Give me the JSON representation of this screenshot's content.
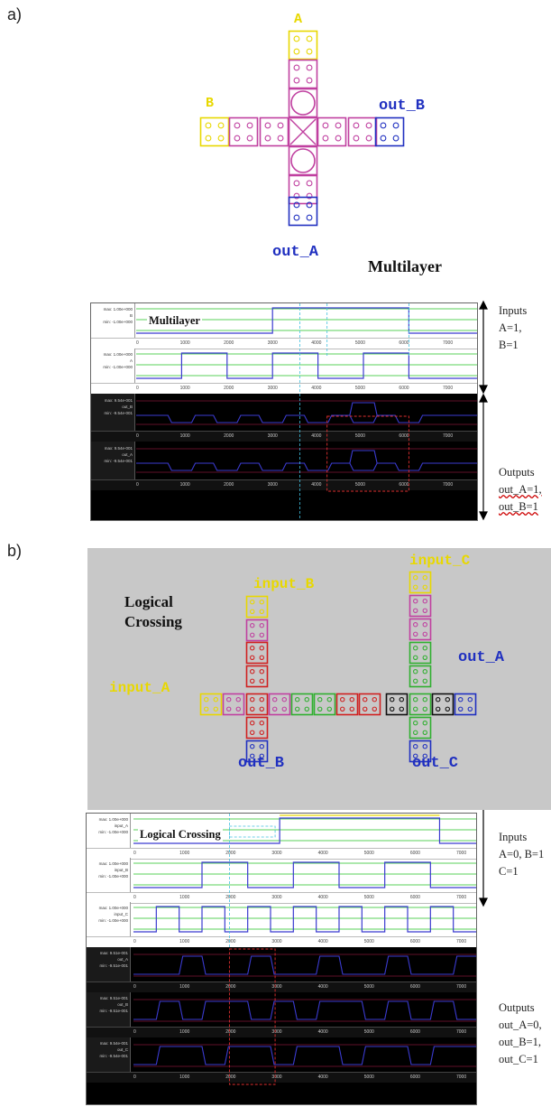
{
  "panel_a": {
    "label": "a)",
    "signals": {
      "A": "A",
      "B": "B",
      "out_A": "out_A",
      "out_B": "out_B"
    },
    "title": "Multilayer",
    "scope_title": "Multilayer",
    "tracks": [
      {
        "max": "max: 1.00e+000",
        "name": "B",
        "min": "min: -1.00e+000"
      },
      {
        "max": "max: 1.00e+000",
        "name": "A",
        "min": "min: -1.00e+000"
      },
      {
        "max": "max: 9.54e-001",
        "name": "out_B",
        "min": "min: -9.54e-001"
      },
      {
        "max": "max: 9.54e-001",
        "name": "out_A",
        "min": "min: -9.54e-001"
      }
    ],
    "inputs_note": [
      "Inputs",
      "A=1,",
      "B=1"
    ],
    "outputs_note": [
      "Outputs",
      "out_A=1,",
      "out_B=1"
    ]
  },
  "panel_b": {
    "label": "b)",
    "signals": {
      "input_A": "input_A",
      "input_B": "input_B",
      "input_C": "input_C",
      "out_A": "out_A",
      "out_B": "out_B",
      "out_C": "out_C"
    },
    "title_lines": [
      "Logical",
      "Crossing"
    ],
    "scope_title": "Logical Crossing",
    "tracks": [
      {
        "max": "max: 1.00e+000",
        "name": "input_A",
        "min": "min: -1.00e+000"
      },
      {
        "max": "max: 1.00e+000",
        "name": "input_B",
        "min": "min: -1.00e+000"
      },
      {
        "max": "max: 1.00e+000",
        "name": "input_C",
        "min": "min: -1.00e+000"
      },
      {
        "max": "max: 9.51e-001",
        "name": "out_A",
        "min": "min: -9.51e-001"
      },
      {
        "max": "max: 9.51e-001",
        "name": "out_B",
        "min": "min: -9.51e-001"
      },
      {
        "max": "max: 9.54e-001",
        "name": "out_C",
        "min": "min: -9.54e-001"
      }
    ],
    "inputs_note": [
      "Inputs",
      "A=0, B=1",
      "C=1"
    ],
    "outputs_note": [
      "Outputs",
      "out_A=0,",
      "out_B=1,",
      "out_C=1"
    ]
  },
  "ruler_ticks": [
    "0",
    "1000",
    "2000",
    "3000",
    "4000",
    "5000",
    "6000",
    "7000"
  ],
  "colors": {
    "yellow": "#e8d800",
    "magenta": "#c040a0",
    "blue": "#2030c0",
    "red": "#d02020",
    "green": "#30b030",
    "black": "#111111",
    "wave_blue": "#3b3bd0",
    "wave_green": "#20c020"
  }
}
